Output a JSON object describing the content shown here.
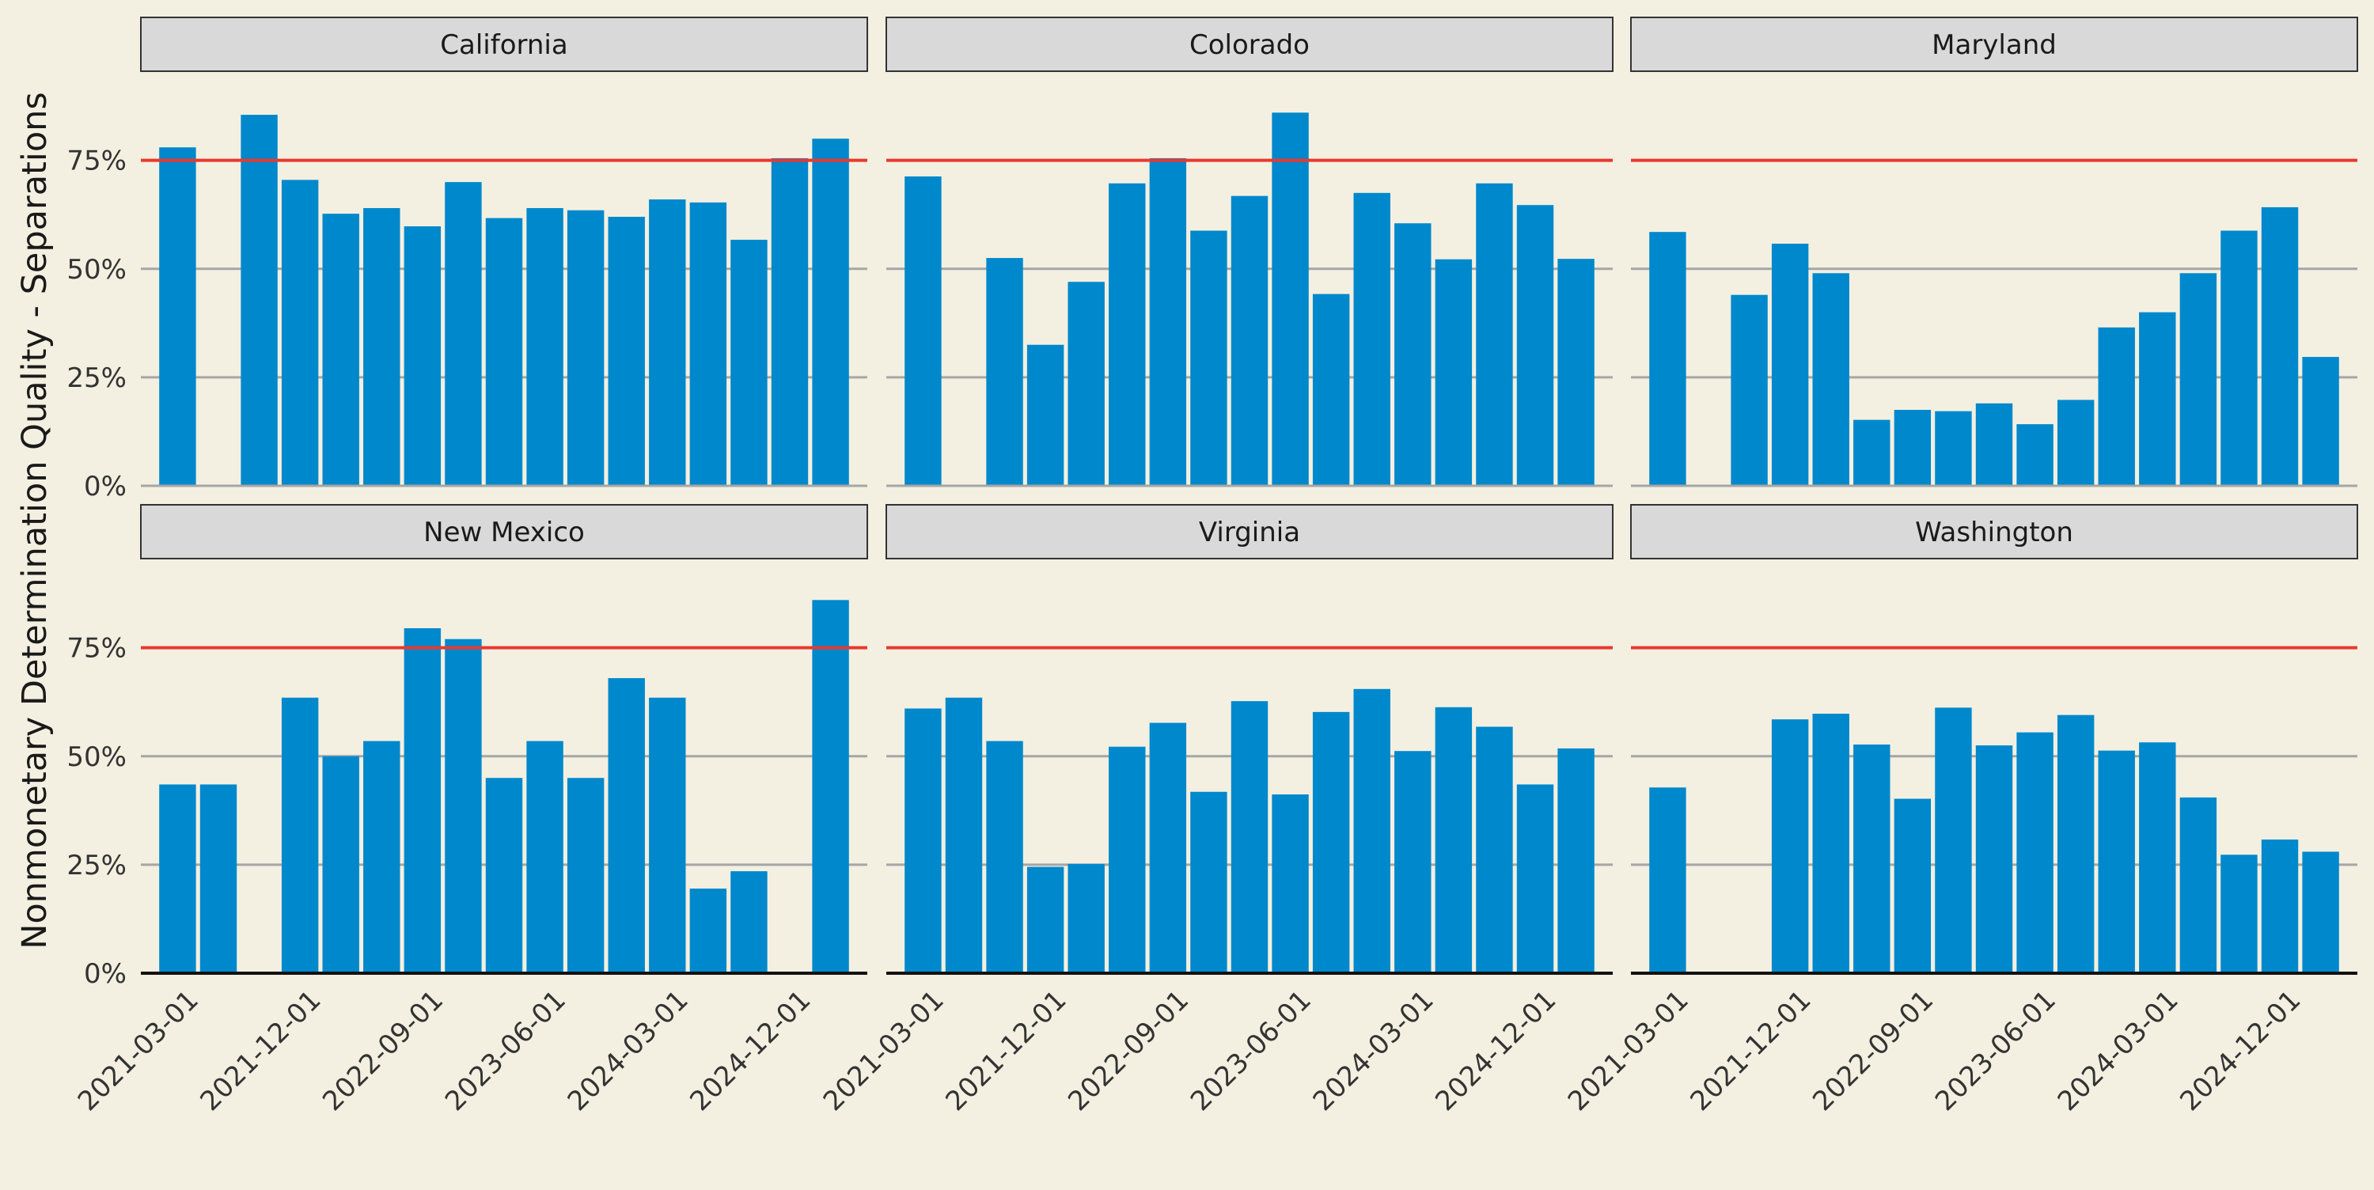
{
  "chart_data": {
    "type": "bar",
    "layout": "facet-grid-2x3",
    "ylabel": "Nonmonetary Determination Quality - Separations",
    "xlabel": "",
    "ylim": [
      0,
      0.95
    ],
    "y_ticks": [
      0,
      0.25,
      0.5,
      0.75
    ],
    "y_tick_labels": [
      "0%",
      "25%",
      "50%",
      "75%"
    ],
    "x_tick_labels": [
      "2021-03-01",
      "2021-12-01",
      "2022-09-01",
      "2023-06-01",
      "2024-03-01",
      "2024-12-01"
    ],
    "x_tick_positions": [
      0,
      3,
      6,
      9,
      12,
      15
    ],
    "categories": [
      "2021-03-01",
      "2021-06-01",
      "2021-09-01",
      "2021-12-01",
      "2022-03-01",
      "2022-06-01",
      "2022-09-01",
      "2022-12-01",
      "2023-03-01",
      "2023-06-01",
      "2023-09-01",
      "2023-12-01",
      "2024-03-01",
      "2024-06-01",
      "2024-09-01",
      "2024-12-01",
      "2025-03-01"
    ],
    "reference_line": {
      "value": 0.75,
      "color": "#e8392e"
    },
    "bar_color": "#0088cc",
    "grid_color": "#a6a6a6",
    "strip_color": "#d9d9d9",
    "background_color": "#f3f0e1",
    "panels": [
      {
        "name": "California",
        "values": [
          0.78,
          null,
          0.855,
          0.705,
          0.627,
          0.64,
          0.598,
          0.7,
          0.617,
          0.64,
          0.635,
          0.62,
          0.66,
          0.653,
          0.567,
          0.755,
          0.8
        ]
      },
      {
        "name": "Colorado",
        "values": [
          0.713,
          null,
          0.525,
          0.325,
          0.47,
          0.697,
          0.755,
          0.588,
          0.668,
          0.86,
          0.442,
          0.675,
          0.605,
          0.522,
          0.697,
          0.647,
          0.523
        ]
      },
      {
        "name": "Maryland",
        "values": [
          0.585,
          null,
          0.44,
          0.558,
          0.49,
          0.152,
          0.175,
          0.172,
          0.19,
          0.142,
          0.198,
          0.365,
          0.4,
          0.49,
          0.588,
          0.642,
          0.297
        ]
      },
      {
        "name": "New Mexico",
        "values": [
          0.435,
          0.435,
          null,
          0.635,
          0.5,
          0.535,
          0.795,
          0.77,
          0.45,
          0.535,
          0.45,
          0.68,
          0.635,
          0.195,
          0.235,
          null,
          0.86
        ]
      },
      {
        "name": "Virginia",
        "values": [
          0.61,
          0.635,
          0.535,
          0.245,
          0.252,
          0.522,
          0.577,
          0.418,
          0.627,
          0.412,
          0.602,
          0.655,
          0.512,
          0.613,
          0.568,
          0.435,
          0.518
        ]
      },
      {
        "name": "Washington",
        "values": [
          0.428,
          null,
          null,
          0.585,
          0.598,
          0.527,
          0.402,
          0.612,
          0.525,
          0.555,
          0.595,
          0.513,
          0.532,
          0.405,
          0.273,
          0.308,
          0.28
        ]
      }
    ]
  }
}
